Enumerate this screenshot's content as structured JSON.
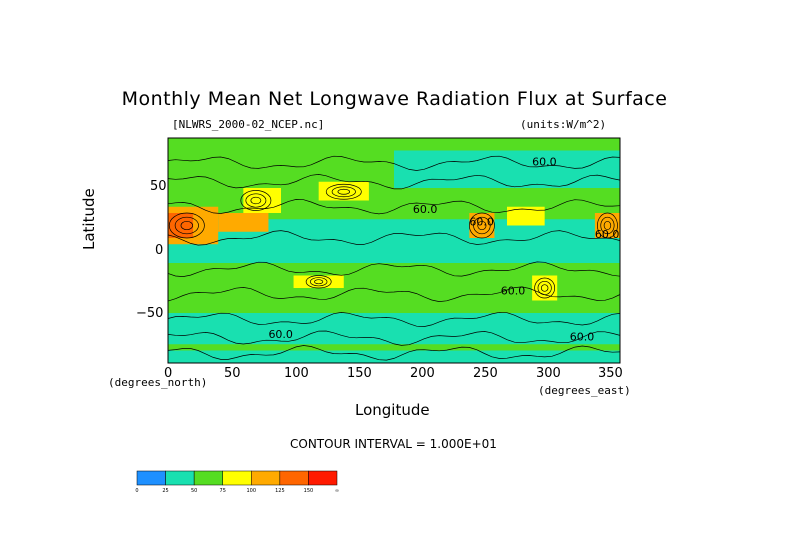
{
  "chart_data": {
    "type": "heatmap",
    "title": "Monthly Mean Net Longwave Radiation Flux at Surface",
    "file_label": "[NLWRS_2000-02_NCEP.nc]",
    "units_label": "(units:W/m^2)",
    "xlabel": "Longitude",
    "ylabel": "Latitude",
    "x_units": "(degrees_east)",
    "y_units": "(degrees_north)",
    "xlim": [
      0,
      360
    ],
    "ylim": [
      -90,
      90
    ],
    "x_ticks": [
      "0",
      "50",
      "100",
      "150",
      "200",
      "250",
      "300",
      "350"
    ],
    "y_ticks": [
      "50",
      "0",
      "−50"
    ],
    "contour_interval": "CONTOUR INTERVAL = 1.000E+01",
    "contour_labels": [
      "60.0",
      "60.0",
      "60.0",
      "60.0",
      "60.0",
      "60.0",
      "60.0"
    ],
    "colorbar": {
      "levels": [
        "0",
        "25",
        "50",
        "75",
        "100",
        "125",
        "150",
        "∞"
      ],
      "colors": [
        "#1e90ff",
        "#19e0b0",
        "#55dd22",
        "#ffff00",
        "#ffaa00",
        "#ff6600",
        "#ff1a00"
      ]
    },
    "regions": [
      {
        "lon": [
          0,
          360
        ],
        "lat": [
          -90,
          90
        ],
        "bin": 2
      },
      {
        "lon": [
          0,
          360
        ],
        "lat": [
          -10,
          25
        ],
        "bin": 1
      },
      {
        "lon": [
          0,
          360
        ],
        "lat": [
          -75,
          -50
        ],
        "bin": 1
      },
      {
        "lon": [
          0,
          360
        ],
        "lat": [
          -90,
          -80
        ],
        "bin": 1
      },
      {
        "lon": [
          180,
          360
        ],
        "lat": [
          50,
          80
        ],
        "bin": 1
      },
      {
        "lon": [
          0,
          40
        ],
        "lat": [
          5,
          35
        ],
        "bin": 4
      },
      {
        "lon": [
          0,
          20
        ],
        "lat": [
          10,
          30
        ],
        "bin": 5
      },
      {
        "lon": [
          40,
          80
        ],
        "lat": [
          15,
          30
        ],
        "bin": 4
      },
      {
        "lon": [
          60,
          90
        ],
        "lat": [
          30,
          50
        ],
        "bin": 3
      },
      {
        "lon": [
          120,
          160
        ],
        "lat": [
          40,
          55
        ],
        "bin": 3
      },
      {
        "lon": [
          240,
          260
        ],
        "lat": [
          10,
          30
        ],
        "bin": 4
      },
      {
        "lon": [
          340,
          360
        ],
        "lat": [
          10,
          30
        ],
        "bin": 4
      },
      {
        "lon": [
          100,
          140
        ],
        "lat": [
          -30,
          -20
        ],
        "bin": 3
      },
      {
        "lon": [
          290,
          310
        ],
        "lat": [
          -20,
          -40
        ],
        "bin": 3
      },
      {
        "lon": [
          270,
          300
        ],
        "lat": [
          20,
          35
        ],
        "bin": 3
      }
    ]
  }
}
